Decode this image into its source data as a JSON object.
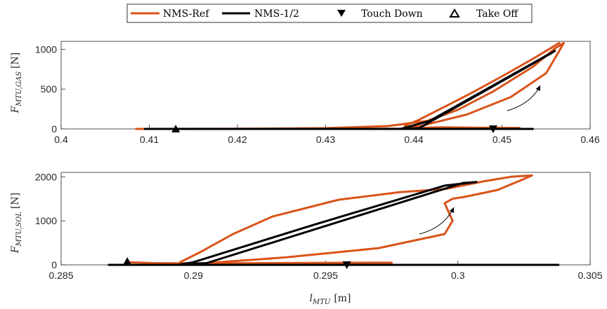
{
  "legend": {
    "entries": [
      {
        "label": "NMS-Ref",
        "kind": "line",
        "color": "#D95319"
      },
      {
        "label": "NMS-1/2",
        "kind": "line",
        "color": "#000000"
      },
      {
        "label": "Touch Down",
        "kind": "marker",
        "marker": "triangle-down"
      },
      {
        "label": "Take Off",
        "kind": "marker",
        "marker": "triangle-up"
      }
    ]
  },
  "chart_data": [
    {
      "type": "line",
      "ylabel": "F_{MTU,GAS} [N]",
      "ylabel_main": "F",
      "ylabel_sub": "MTU,GAS",
      "ylabel_unit": "[N]",
      "xlim": [
        0.4,
        0.46
      ],
      "ylim": [
        0,
        1100
      ],
      "xticks": [
        0.4,
        0.41,
        0.42,
        0.43,
        0.44,
        0.45,
        0.46
      ],
      "xtick_labels": [
        "0.4",
        "0.41",
        "0.42",
        "0.43",
        "0.44",
        "0.45",
        "0.46"
      ],
      "yticks": [
        0,
        500,
        1000
      ],
      "ytick_labels": [
        "0",
        "500",
        "1000"
      ],
      "series": [
        {
          "name": "NMS-Ref",
          "color": "#D95319",
          "loops": [
            [
              [
                0.4085,
                0
              ],
              [
                0.425,
                0
              ],
              [
                0.438,
                2
              ],
              [
                0.447,
                3
              ],
              [
                0.4515,
                5
              ],
              [
                0.452,
                12
              ],
              [
                0.447,
                15
              ],
              [
                0.443,
                20
              ],
              [
                0.439,
                10
              ],
              [
                0.4405,
                30
              ],
              [
                0.446,
                180
              ],
              [
                0.451,
                400
              ],
              [
                0.455,
                700
              ],
              [
                0.4565,
                980
              ],
              [
                0.457,
                1080
              ],
              [
                0.456,
                1010
              ],
              [
                0.4535,
                780
              ],
              [
                0.449,
                470
              ],
              [
                0.445,
                240
              ],
              [
                0.4415,
                100
              ],
              [
                0.437,
                35
              ],
              [
                0.43,
                10
              ],
              [
                0.42,
                2
              ],
              [
                0.4095,
                0
              ]
            ],
            [
              [
                0.4565,
                1080
              ],
              [
                0.4535,
                880
              ],
              [
                0.45,
                660
              ],
              [
                0.4465,
                450
              ],
              [
                0.443,
                250
              ],
              [
                0.4405,
                110
              ],
              [
                0.439,
                40
              ]
            ]
          ]
        },
        {
          "name": "NMS-1/2",
          "color": "#000000",
          "loops": [
            [
              [
                0.4095,
                0
              ],
              [
                0.413,
                0
              ],
              [
                0.425,
                0
              ],
              [
                0.44,
                0
              ],
              [
                0.4535,
                0
              ]
            ],
            [
              [
                0.4385,
                0
              ],
              [
                0.4418,
                100
              ],
              [
                0.456,
                980
              ],
              [
                0.4555,
                945
              ],
              [
                0.4406,
                10
              ],
              [
                0.4385,
                0
              ]
            ]
          ]
        }
      ],
      "touch_down": [
        0.449,
        0
      ],
      "take_off": [
        0.413,
        0
      ],
      "annotation": "arrow"
    },
    {
      "type": "line",
      "ylabel": "F_{MTU,SOL} [N]",
      "ylabel_main": "F",
      "ylabel_sub": "MTU,SOL",
      "ylabel_unit": "[N]",
      "xlabel": "l_{MTU} [m]",
      "xlabel_main": "l",
      "xlabel_sub": "MTU",
      "xlabel_unit": "[m]",
      "xlim": [
        0.285,
        0.305
      ],
      "ylim": [
        0,
        2100
      ],
      "xticks": [
        0.285,
        0.29,
        0.295,
        0.3,
        0.305
      ],
      "xtick_labels": [
        "0.285",
        "0.29",
        "0.295",
        "0.3",
        "0.305"
      ],
      "yticks": [
        0,
        1000,
        2000
      ],
      "ytick_labels": [
        "0",
        "1000",
        "2000"
      ],
      "series": [
        {
          "name": "NMS-Ref",
          "color": "#D95319",
          "loops": [
            [
              [
                0.2875,
                60
              ],
              [
                0.2885,
                40
              ],
              [
                0.2895,
                35
              ],
              [
                0.2915,
                35
              ],
              [
                0.2945,
                45
              ],
              [
                0.2975,
                50
              ]
            ],
            [
              [
                0.2905,
                40
              ],
              [
                0.2935,
                170
              ],
              [
                0.297,
                380
              ],
              [
                0.2995,
                700
              ],
              [
                0.2998,
                1000
              ],
              [
                0.2995,
                1400
              ],
              [
                0.2998,
                1500
              ],
              [
                0.3003,
                1550
              ],
              [
                0.3015,
                1700
              ],
              [
                0.3025,
                1950
              ],
              [
                0.3028,
                2030
              ],
              [
                0.302,
                2000
              ],
              [
                0.301,
                1900
              ],
              [
                0.2995,
                1720
              ],
              [
                0.2978,
                1650
              ],
              [
                0.2955,
                1480
              ],
              [
                0.293,
                1100
              ],
              [
                0.2915,
                700
              ],
              [
                0.2903,
                300
              ],
              [
                0.2895,
                60
              ]
            ]
          ]
        },
        {
          "name": "NMS-1/2",
          "color": "#000000",
          "loops": [
            [
              [
                0.2868,
                0
              ],
              [
                0.2895,
                0
              ],
              [
                0.2958,
                0
              ],
              [
                0.3,
                0
              ],
              [
                0.3038,
                0
              ]
            ],
            [
              [
                0.2895,
                10
              ],
              [
                0.29,
                60
              ],
              [
                0.2945,
                900
              ],
              [
                0.2995,
                1800
              ],
              [
                0.3007,
                1880
              ],
              [
                0.3002,
                1860
              ],
              [
                0.2905,
                40
              ],
              [
                0.2895,
                10
              ]
            ]
          ]
        }
      ],
      "touch_down": [
        0.2958,
        0
      ],
      "take_off": [
        0.2875,
        80
      ],
      "annotation": "arrow"
    }
  ]
}
